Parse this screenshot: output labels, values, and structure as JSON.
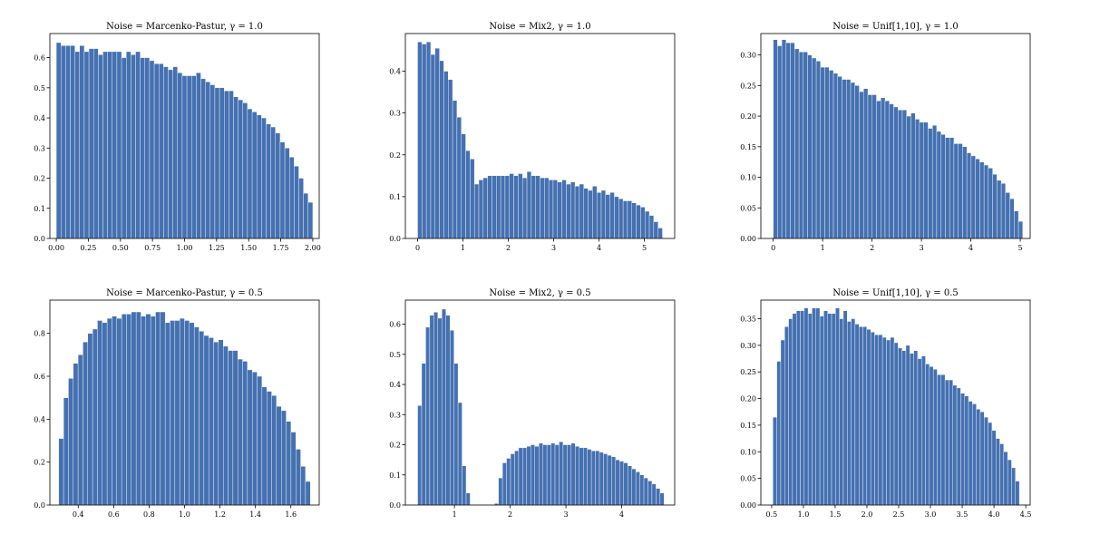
{
  "figure": {
    "bar_color": "#4571b1",
    "background": "#ffffff"
  },
  "chart_data": [
    {
      "type": "bar",
      "subplot": "top-left",
      "title": "Noise = Marcenko-Pastur, γ = 1.0",
      "xlim": [
        -0.05,
        2.05
      ],
      "ylim": [
        0,
        0.68
      ],
      "xticks": [
        0.0,
        0.25,
        0.5,
        0.75,
        1.0,
        1.25,
        1.5,
        1.75,
        2.0
      ],
      "xtick_labels": [
        "0.00",
        "0.25",
        "0.50",
        "0.75",
        "1.00",
        "1.25",
        "1.50",
        "1.75",
        "2.00"
      ],
      "yticks": [
        0.0,
        0.1,
        0.2,
        0.3,
        0.4,
        0.5,
        0.6
      ],
      "ytick_labels": [
        "0.0",
        "0.1",
        "0.2",
        "0.3",
        "0.4",
        "0.5",
        "0.6"
      ],
      "bins": {
        "start": 0.0,
        "end": 2.0
      },
      "values": [
        0.65,
        0.64,
        0.64,
        0.64,
        0.62,
        0.64,
        0.62,
        0.63,
        0.63,
        0.61,
        0.62,
        0.62,
        0.62,
        0.62,
        0.6,
        0.62,
        0.61,
        0.62,
        0.6,
        0.6,
        0.59,
        0.58,
        0.58,
        0.57,
        0.56,
        0.57,
        0.55,
        0.54,
        0.54,
        0.54,
        0.55,
        0.53,
        0.52,
        0.51,
        0.5,
        0.5,
        0.49,
        0.49,
        0.47,
        0.46,
        0.45,
        0.43,
        0.42,
        0.41,
        0.4,
        0.38,
        0.37,
        0.35,
        0.32,
        0.3,
        0.27,
        0.24,
        0.2,
        0.15,
        0.12
      ]
    },
    {
      "type": "bar",
      "subplot": "top-middle",
      "title": "Noise = Mix2, γ = 1.0",
      "xlim": [
        -0.27,
        5.67
      ],
      "ylim": [
        0,
        0.49
      ],
      "xticks": [
        0,
        1,
        2,
        3,
        4,
        5
      ],
      "xtick_labels": [
        "0",
        "1",
        "2",
        "3",
        "4",
        "5"
      ],
      "yticks": [
        0.0,
        0.1,
        0.2,
        0.3,
        0.4
      ],
      "ytick_labels": [
        "0.0",
        "0.1",
        "0.2",
        "0.3",
        "0.4"
      ],
      "bins": {
        "start": 0.0,
        "end": 5.4
      },
      "values": [
        0.47,
        0.465,
        0.47,
        0.44,
        0.455,
        0.425,
        0.4,
        0.38,
        0.33,
        0.29,
        0.25,
        0.21,
        0.19,
        0.13,
        0.14,
        0.145,
        0.15,
        0.15,
        0.15,
        0.15,
        0.15,
        0.155,
        0.15,
        0.155,
        0.145,
        0.16,
        0.15,
        0.15,
        0.145,
        0.145,
        0.14,
        0.14,
        0.135,
        0.14,
        0.13,
        0.135,
        0.125,
        0.13,
        0.12,
        0.115,
        0.125,
        0.11,
        0.115,
        0.105,
        0.11,
        0.1,
        0.095,
        0.09,
        0.09,
        0.085,
        0.08,
        0.075,
        0.065,
        0.055,
        0.04,
        0.025
      ]
    },
    {
      "type": "bar",
      "subplot": "top-right",
      "title": "Noise = Unif[1,10], γ = 1.0",
      "xlim": [
        -0.25,
        5.2
      ],
      "ylim": [
        0,
        0.335
      ],
      "xticks": [
        0,
        1,
        2,
        3,
        4,
        5
      ],
      "xtick_labels": [
        "0",
        "1",
        "2",
        "3",
        "4",
        "5"
      ],
      "yticks": [
        0.0,
        0.05,
        0.1,
        0.15,
        0.2,
        0.25,
        0.3
      ],
      "ytick_labels": [
        "0.00",
        "0.05",
        "0.10",
        "0.15",
        "0.20",
        "0.25",
        "0.30"
      ],
      "bins": {
        "start": 0.0,
        "end": 5.05
      },
      "values": [
        0.325,
        0.315,
        0.325,
        0.32,
        0.32,
        0.31,
        0.305,
        0.305,
        0.3,
        0.295,
        0.29,
        0.28,
        0.28,
        0.275,
        0.27,
        0.265,
        0.26,
        0.26,
        0.255,
        0.25,
        0.24,
        0.245,
        0.235,
        0.235,
        0.225,
        0.23,
        0.225,
        0.22,
        0.215,
        0.21,
        0.21,
        0.2,
        0.205,
        0.195,
        0.19,
        0.19,
        0.18,
        0.185,
        0.175,
        0.17,
        0.165,
        0.165,
        0.155,
        0.155,
        0.15,
        0.14,
        0.135,
        0.13,
        0.125,
        0.12,
        0.115,
        0.105,
        0.095,
        0.09,
        0.075,
        0.065,
        0.045,
        0.028
      ]
    },
    {
      "type": "bar",
      "subplot": "bottom-left",
      "title": "Noise = Marcenko-Pastur, γ = 0.5",
      "xlim": [
        0.24,
        1.76
      ],
      "ylim": [
        0,
        0.955
      ],
      "xticks": [
        0.4,
        0.6,
        0.8,
        1.0,
        1.2,
        1.4,
        1.6
      ],
      "xtick_labels": [
        "0.4",
        "0.6",
        "0.8",
        "1.0",
        "1.2",
        "1.4",
        "1.6"
      ],
      "yticks": [
        0.0,
        0.2,
        0.4,
        0.6,
        0.8
      ],
      "ytick_labels": [
        "0.0",
        "0.2",
        "0.4",
        "0.6",
        "0.8"
      ],
      "bins": {
        "start": 0.29,
        "end": 1.71
      },
      "values": [
        0.31,
        0.5,
        0.59,
        0.66,
        0.7,
        0.76,
        0.8,
        0.82,
        0.86,
        0.85,
        0.87,
        0.88,
        0.87,
        0.89,
        0.89,
        0.9,
        0.9,
        0.88,
        0.89,
        0.88,
        0.9,
        0.9,
        0.85,
        0.86,
        0.86,
        0.87,
        0.86,
        0.85,
        0.83,
        0.81,
        0.79,
        0.78,
        0.76,
        0.77,
        0.74,
        0.72,
        0.72,
        0.68,
        0.67,
        0.63,
        0.62,
        0.6,
        0.55,
        0.53,
        0.51,
        0.46,
        0.44,
        0.39,
        0.34,
        0.26,
        0.18,
        0.11
      ]
    },
    {
      "type": "bar",
      "subplot": "bottom-middle",
      "title": "Noise = Mix2, γ = 0.5",
      "xlim": [
        0.12,
        4.95
      ],
      "ylim": [
        0,
        0.68
      ],
      "xticks": [
        1,
        2,
        3,
        4
      ],
      "xtick_labels": [
        "1",
        "2",
        "3",
        "4"
      ],
      "yticks": [
        0.0,
        0.1,
        0.2,
        0.3,
        0.4,
        0.5,
        0.6
      ],
      "ytick_labels": [
        "0.0",
        "0.1",
        "0.2",
        "0.3",
        "0.4",
        "0.5",
        "0.6"
      ],
      "bins": {
        "start": 0.34,
        "end": 4.76
      },
      "values": [
        0.33,
        0.47,
        0.59,
        0.63,
        0.64,
        0.62,
        0.65,
        0.63,
        0.58,
        0.47,
        0.34,
        0.13,
        0.04,
        0.0,
        0.0,
        0.0,
        0.0,
        0.0,
        0.0,
        0.005,
        0.09,
        0.14,
        0.155,
        0.17,
        0.18,
        0.19,
        0.19,
        0.195,
        0.2,
        0.195,
        0.205,
        0.2,
        0.2,
        0.205,
        0.2,
        0.21,
        0.2,
        0.2,
        0.205,
        0.195,
        0.19,
        0.19,
        0.185,
        0.18,
        0.18,
        0.175,
        0.17,
        0.165,
        0.16,
        0.15,
        0.145,
        0.14,
        0.13,
        0.12,
        0.11,
        0.1,
        0.09,
        0.08,
        0.07,
        0.055,
        0.04
      ]
    },
    {
      "type": "bar",
      "subplot": "bottom-right",
      "title": "Noise = Unif[1,10], γ = 0.5",
      "xlim": [
        0.33,
        4.57
      ],
      "ylim": [
        0,
        0.385
      ],
      "xticks": [
        0.5,
        1.0,
        1.5,
        2.0,
        2.5,
        3.0,
        3.5,
        4.0,
        4.5
      ],
      "xtick_labels": [
        "0.5",
        "1.0",
        "1.5",
        "2.0",
        "2.5",
        "3.0",
        "3.5",
        "4.0",
        "4.5"
      ],
      "yticks": [
        0.0,
        0.05,
        0.1,
        0.15,
        0.2,
        0.25,
        0.3,
        0.35
      ],
      "ytick_labels": [
        "0.00",
        "0.05",
        "0.10",
        "0.15",
        "0.20",
        "0.25",
        "0.30",
        "0.35"
      ],
      "bins": {
        "start": 0.52,
        "end": 4.4
      },
      "values": [
        0.165,
        0.27,
        0.31,
        0.335,
        0.35,
        0.36,
        0.365,
        0.365,
        0.37,
        0.36,
        0.37,
        0.37,
        0.355,
        0.365,
        0.36,
        0.36,
        0.37,
        0.35,
        0.365,
        0.345,
        0.35,
        0.34,
        0.335,
        0.335,
        0.33,
        0.325,
        0.32,
        0.32,
        0.315,
        0.31,
        0.315,
        0.305,
        0.295,
        0.29,
        0.3,
        0.285,
        0.29,
        0.275,
        0.28,
        0.265,
        0.26,
        0.255,
        0.245,
        0.245,
        0.235,
        0.235,
        0.225,
        0.22,
        0.21,
        0.205,
        0.195,
        0.19,
        0.18,
        0.175,
        0.165,
        0.155,
        0.14,
        0.125,
        0.115,
        0.1,
        0.085,
        0.07,
        0.045
      ]
    }
  ]
}
